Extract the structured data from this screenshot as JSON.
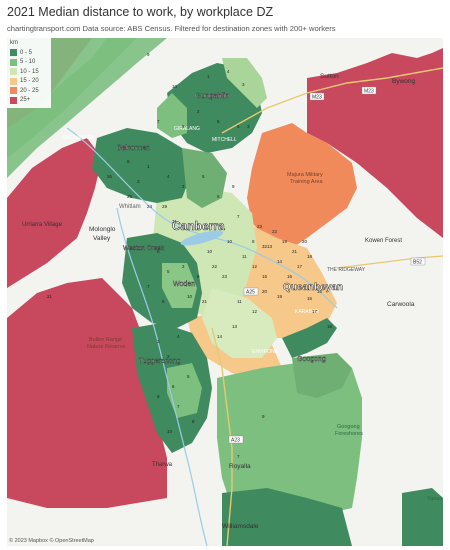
{
  "title": "2021 Median distance to work, by workplace DZ",
  "subtitle": "chartingtransport.com  Data source: ABS Census. Filtered for destination zones with 200+ workers",
  "legend": {
    "title": "km",
    "items": [
      {
        "label": "0 - 5",
        "color": "#3f8a5f"
      },
      {
        "label": "5 - 10",
        "color": "#7cbf7f"
      },
      {
        "label": "10 - 15",
        "color": "#cfe6b5"
      },
      {
        "label": "15 - 20",
        "color": "#f6c88a"
      },
      {
        "label": "20 - 25",
        "color": "#f08a5a"
      },
      {
        "label": "25+",
        "color": "#c8485e"
      }
    ]
  },
  "places": {
    "canberra": "Canberra",
    "queanbeyan": "Queanbeyan",
    "gungahlin": "Gungahlin",
    "belconnen": "Belconnen",
    "woden": "Woden",
    "weston_creek": "Weston Creek",
    "tuggeranong": "Tuggeranong",
    "molonglo": "Molonglo",
    "molonglo2": "Valley",
    "googong": "Googong",
    "sutton": "Sutton",
    "bywong": "Bywong",
    "carwoola": "Carwoola",
    "royalla": "Royalla",
    "williamsdale": "Williamsdale",
    "urriarra": "Urriarra Village",
    "kowen": "Kowen Forest",
    "whitlam": "Whitlam",
    "majura1": "Majura Military",
    "majura2": "Training Area",
    "bullen1": "Bullen Range",
    "bullen2": "Nature Reserve",
    "googong_fs1": "Googong",
    "googong_fs2": "Foreshores",
    "tharwa": "Tharwa",
    "macnamara": "MACNAMARA",
    "mitchell": "MITCHELL",
    "giralang": "GIRALANG",
    "karabar": "KARABAR",
    "environa": "ENVIRONA",
    "the_ridgeway": "THE RIDGEWAY",
    "yanun": "Yanun"
  },
  "roads": [
    "A23",
    "M23",
    "B52",
    "A25",
    "B23"
  ],
  "zone_values": [
    "1",
    "4",
    "3",
    "2",
    "5",
    "6",
    "9",
    "7",
    "8",
    "10",
    "11",
    "12",
    "13",
    "14",
    "15",
    "16",
    "17",
    "18",
    "19",
    "20",
    "21",
    "22",
    "23",
    "24",
    "25",
    "26",
    "29",
    "31",
    "32"
  ],
  "attribution": "© 2023 Mapbox © OpenStreetMap"
}
